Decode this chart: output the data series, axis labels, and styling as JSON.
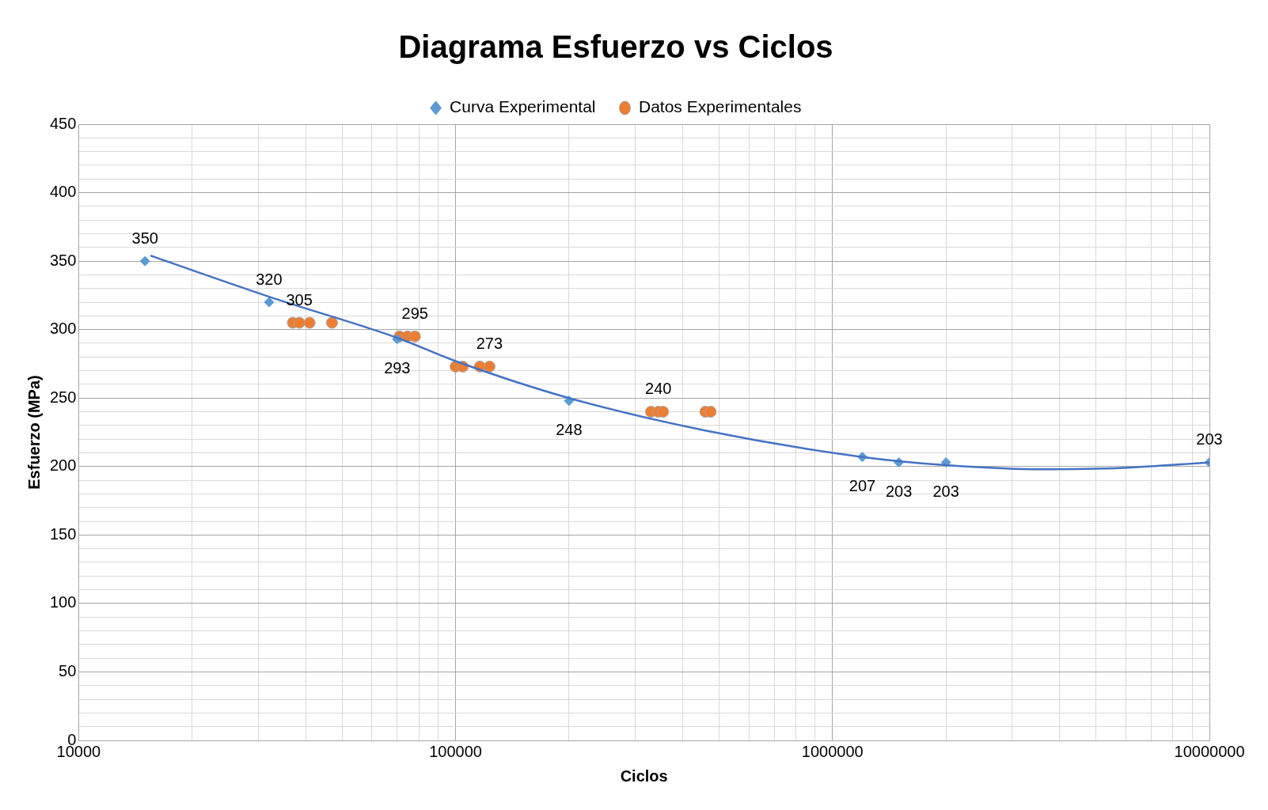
{
  "chart_data": {
    "type": "scatter",
    "title": "Diagrama Esfuerzo vs Ciclos",
    "xlabel": "Ciclos",
    "ylabel": "Esfuerzo (MPa)",
    "log": "x",
    "grid": true,
    "legend": "top",
    "xlim": [
      10000,
      10000000
    ],
    "xticks": [
      10000,
      {
        "value": 20000,
        "label": null
      },
      {
        "value": 30000,
        "label": null
      },
      {
        "value": 40000,
        "label": null
      },
      {
        "value": 50000,
        "label": null
      },
      {
        "value": 60000,
        "label": null
      },
      {
        "value": 70000,
        "label": null
      },
      {
        "value": 80000,
        "label": null
      },
      {
        "value": 90000,
        "label": null
      },
      100000,
      {
        "value": 200000,
        "label": null
      },
      {
        "value": 300000,
        "label": null
      },
      {
        "value": 400000,
        "label": null
      },
      {
        "value": 500000,
        "label": null
      },
      {
        "value": 600000,
        "label": null
      },
      {
        "value": 700000,
        "label": null
      },
      {
        "value": 800000,
        "label": null
      },
      {
        "value": 900000,
        "label": null
      },
      1000000,
      {
        "value": 2000000,
        "label": null
      },
      {
        "value": 3000000,
        "label": null
      },
      {
        "value": 4000000,
        "label": null
      },
      {
        "value": 5000000,
        "label": null
      },
      {
        "value": 6000000,
        "label": null
      },
      {
        "value": 7000000,
        "label": null
      },
      {
        "value": 8000000,
        "label": null
      },
      {
        "value": 9000000,
        "label": null
      },
      10000000
    ],
    "ylim": [
      0,
      450
    ],
    "yticks": [
      0,
      {
        "value": 10,
        "label": null
      },
      {
        "value": 20,
        "label": null
      },
      {
        "value": 30,
        "label": null
      },
      {
        "value": 40,
        "label": null
      },
      50,
      {
        "value": 60,
        "label": null
      },
      {
        "value": 70,
        "label": null
      },
      {
        "value": 80,
        "label": null
      },
      {
        "value": 90,
        "label": null
      },
      100,
      {
        "value": 110,
        "label": null
      },
      {
        "value": 120,
        "label": null
      },
      {
        "value": 130,
        "label": null
      },
      {
        "value": 140,
        "label": null
      },
      150,
      {
        "value": 160,
        "label": null
      },
      {
        "value": 170,
        "label": null
      },
      {
        "value": 180,
        "label": null
      },
      {
        "value": 190,
        "label": null
      },
      200,
      {
        "value": 210,
        "label": null
      },
      {
        "value": 220,
        "label": null
      },
      {
        "value": 230,
        "label": null
      },
      {
        "value": 240,
        "label": null
      },
      250,
      {
        "value": 260,
        "label": null
      },
      {
        "value": 270,
        "label": null
      },
      {
        "value": 280,
        "label": null
      },
      {
        "value": 290,
        "label": null
      },
      300,
      {
        "value": 310,
        "label": null
      },
      {
        "value": 320,
        "label": null
      },
      {
        "value": 330,
        "label": null
      },
      {
        "value": 340,
        "label": null
      },
      350,
      {
        "value": 360,
        "label": null
      },
      {
        "value": 370,
        "label": null
      },
      {
        "value": 380,
        "label": null
      },
      {
        "value": 390,
        "label": null
      },
      400,
      {
        "value": 410,
        "label": null
      },
      {
        "value": 420,
        "label": null
      },
      {
        "value": 430,
        "label": null
      },
      {
        "value": 440,
        "label": null
      },
      450
    ],
    "series": [
      {
        "type": "line",
        "color": "#4472c4",
        "marker": "none",
        "x": [
          15500,
          32000,
          70000,
          100000,
          200000,
          465000,
          1200000,
          2000000,
          3560000,
          5900000,
          10000000
        ],
        "values": [
          354,
          324,
          294,
          277,
          250,
          226,
          207,
          201,
          198,
          199,
          203
        ]
      },
      {
        "name": "Curva Experimental",
        "type": "scatter",
        "marker": "diamond",
        "color": "#5b9bd5",
        "x": [
          15000,
          32000,
          70000,
          200000,
          1200000,
          1500000,
          2000000,
          10000000
        ],
        "values": [
          350,
          320,
          293,
          248,
          207,
          203,
          203,
          203
        ],
        "value_labels": [
          "350",
          "320",
          "293",
          "248",
          "207",
          "203",
          "203",
          "203"
        ]
      },
      {
        "name": "Datos Experimentales",
        "type": "scatter",
        "marker": "circle",
        "color": "#ed7d31",
        "x": [
          37000,
          38500,
          41000,
          47000,
          71000,
          74500,
          78000,
          100000,
          104500,
          116000,
          123000,
          330000,
          345000,
          355000,
          460000,
          475000
        ],
        "values": [
          305,
          305,
          305,
          305,
          295,
          295,
          295,
          273,
          273,
          273,
          273,
          240,
          240,
          240,
          240,
          240
        ],
        "value_labels": [
          null,
          "305",
          null,
          null,
          null,
          null,
          "295",
          null,
          null,
          null,
          "273",
          null,
          "240",
          null,
          null,
          null
        ]
      }
    ]
  }
}
